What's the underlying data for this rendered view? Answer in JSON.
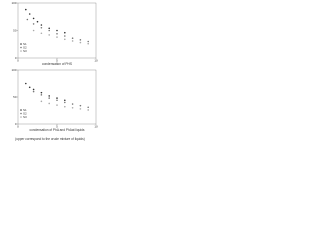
{
  "chart_data": [
    {
      "type": "scatter",
      "caption": "condensation of PHS",
      "xlim": [
        0,
        10
      ],
      "ylim": [
        0,
        100
      ],
      "xticks": [
        0,
        5,
        10
      ],
      "yticks": [
        0,
        50,
        100
      ],
      "grid": false,
      "series": [
        {
          "name": "S1",
          "color": "#333333",
          "x": [
            1,
            1.5,
            2,
            2.5,
            3,
            4,
            5,
            6
          ],
          "values": [
            88,
            80,
            72,
            66,
            60,
            54,
            50,
            46
          ]
        },
        {
          "name": "S2",
          "color": "#777777",
          "x": [
            1.2,
            2,
            3,
            4,
            5,
            6,
            7,
            8,
            9
          ],
          "values": [
            70,
            62,
            55,
            50,
            44,
            40,
            36,
            33,
            30
          ]
        },
        {
          "name": "S3",
          "color": "#aaaaaa",
          "x": [
            2,
            3,
            4,
            5,
            6,
            7,
            8,
            9
          ],
          "values": [
            50,
            45,
            42,
            38,
            34,
            31,
            28,
            26
          ]
        }
      ]
    },
    {
      "type": "scatter",
      "caption": "condensation of PhA and PhAat liquids",
      "xlim": [
        0,
        10
      ],
      "ylim": [
        0,
        100
      ],
      "xticks": [
        0,
        5,
        10
      ],
      "yticks": [
        0,
        50,
        100
      ],
      "grid": false,
      "series": [
        {
          "name": "S1",
          "color": "#333333",
          "x": [
            1,
            1.5,
            2,
            3,
            4,
            5,
            6
          ],
          "values": [
            75,
            68,
            64,
            58,
            52,
            48,
            44
          ]
        },
        {
          "name": "S2",
          "color": "#777777",
          "x": [
            2,
            3,
            4,
            5,
            6,
            7,
            8,
            9
          ],
          "values": [
            60,
            54,
            48,
            44,
            40,
            37,
            34,
            31
          ]
        },
        {
          "name": "S3",
          "color": "#aaaaaa",
          "x": [
            3,
            4,
            5,
            6,
            7,
            8,
            9
          ],
          "values": [
            42,
            38,
            35,
            32,
            30,
            28,
            26
          ]
        }
      ]
    }
  ],
  "footnote": "(upper correspond to the crude mixture of liquids)"
}
